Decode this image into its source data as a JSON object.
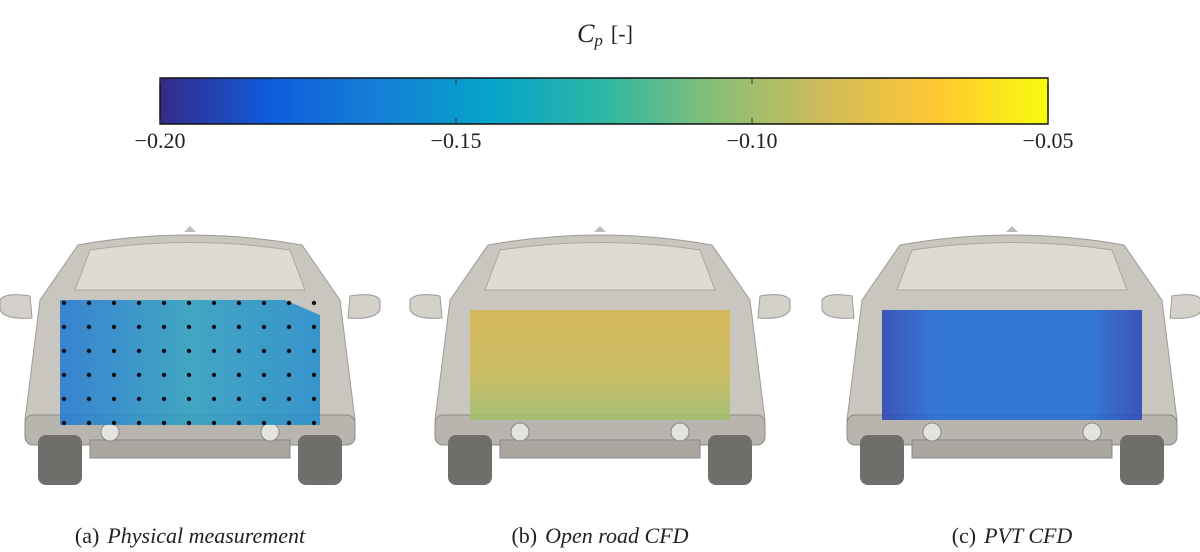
{
  "colorbar": {
    "symbol": "C",
    "subscript": "p",
    "unit": "[-]",
    "lim": [
      -0.2,
      -0.05
    ],
    "ticks": [
      {
        "value": -0.2,
        "label": "−0.20"
      },
      {
        "value": -0.15,
        "label": "−0.15"
      },
      {
        "value": -0.1,
        "label": "−0.10"
      },
      {
        "value": -0.05,
        "label": "−0.05"
      }
    ],
    "colormap": [
      "#352a87",
      "#0f5cdd",
      "#1481d6",
      "#06a4ca",
      "#2eb7a4",
      "#87bf77",
      "#d1bb59",
      "#fec832",
      "#f9fb0e"
    ]
  },
  "panels": [
    {
      "tag": "(a)",
      "caption": "Physical measurement"
    },
    {
      "tag": "(b)",
      "caption": "Open road CFD"
    },
    {
      "tag": "(c)",
      "caption": "PVT CFD"
    }
  ]
}
